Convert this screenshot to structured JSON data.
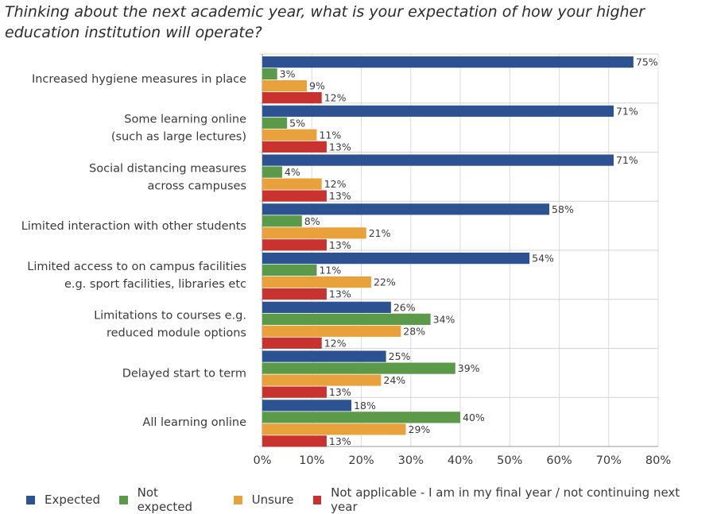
{
  "title": "Thinking about the next academic year, what is your expectation of how your higher education institution will operate?",
  "colors": {
    "Expected": "#2d5291",
    "Not expected": "#5a9a48",
    "Unsure": "#e9a23b",
    "Not applicable": "#c8322f"
  },
  "chart_data": {
    "type": "bar",
    "orientation": "horizontal",
    "categories": [
      [
        "Increased hygiene measures in place"
      ],
      [
        "Some learning online",
        "(such as large lectures)"
      ],
      [
        "Social distancing measures",
        "across campuses"
      ],
      [
        "Limited interaction with other students"
      ],
      [
        "Limited access to on campus facilities",
        "e.g. sport facilities, libraries etc"
      ],
      [
        "Limitations to courses e.g.",
        "reduced module options"
      ],
      [
        "Delayed start to term"
      ],
      [
        "All learning online"
      ]
    ],
    "series": [
      {
        "name": "Expected",
        "values": [
          75,
          71,
          71,
          58,
          54,
          26,
          25,
          18
        ]
      },
      {
        "name": "Not expected",
        "values": [
          3,
          5,
          4,
          8,
          11,
          34,
          39,
          40
        ]
      },
      {
        "name": "Unsure",
        "values": [
          9,
          11,
          12,
          21,
          22,
          28,
          24,
          29
        ]
      },
      {
        "name": "Not applicable - I am in my final year / not continuing next year",
        "values": [
          12,
          13,
          13,
          13,
          13,
          12,
          13,
          13
        ]
      }
    ],
    "value_suffix": "%",
    "xlim": [
      0,
      80
    ],
    "xticks": [
      "0%",
      "10%",
      "20%",
      "30%",
      "40%",
      "50%",
      "60%",
      "70%",
      "80%"
    ],
    "grid": true,
    "legend_position": "bottom"
  }
}
